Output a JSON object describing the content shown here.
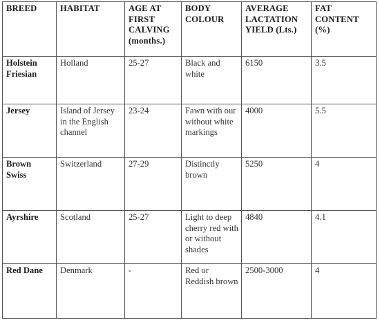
{
  "table": {
    "headers": [
      "BREED",
      "HABITAT",
      "AGE AT FIRST CALVING (months.)",
      "BODY COLOUR",
      "AVERAGE LACTATION YIELD (Lts.)",
      "FAT CONTENT (%)"
    ],
    "rows": [
      [
        "Holstein Friesian",
        "Holland",
        "25-27",
        "Black and white",
        "6150",
        "3.5"
      ],
      [
        "Jersey",
        "Island of Jersey in the English channel",
        "23-24",
        "Fawn with our without white markings",
        "4000",
        "5.5"
      ],
      [
        "Brown Swiss",
        "Switzerland",
        "27-29",
        "Distinctly brown",
        "5250",
        "4"
      ],
      [
        "Ayrshire",
        "Scotland",
        "25-27",
        "Light to deep cherry red with or without shades",
        "4840",
        "4.1"
      ],
      [
        "Red Dane",
        "Denmark",
        "-",
        "Red or Reddish brown",
        "2500-3000",
        "4"
      ]
    ]
  }
}
